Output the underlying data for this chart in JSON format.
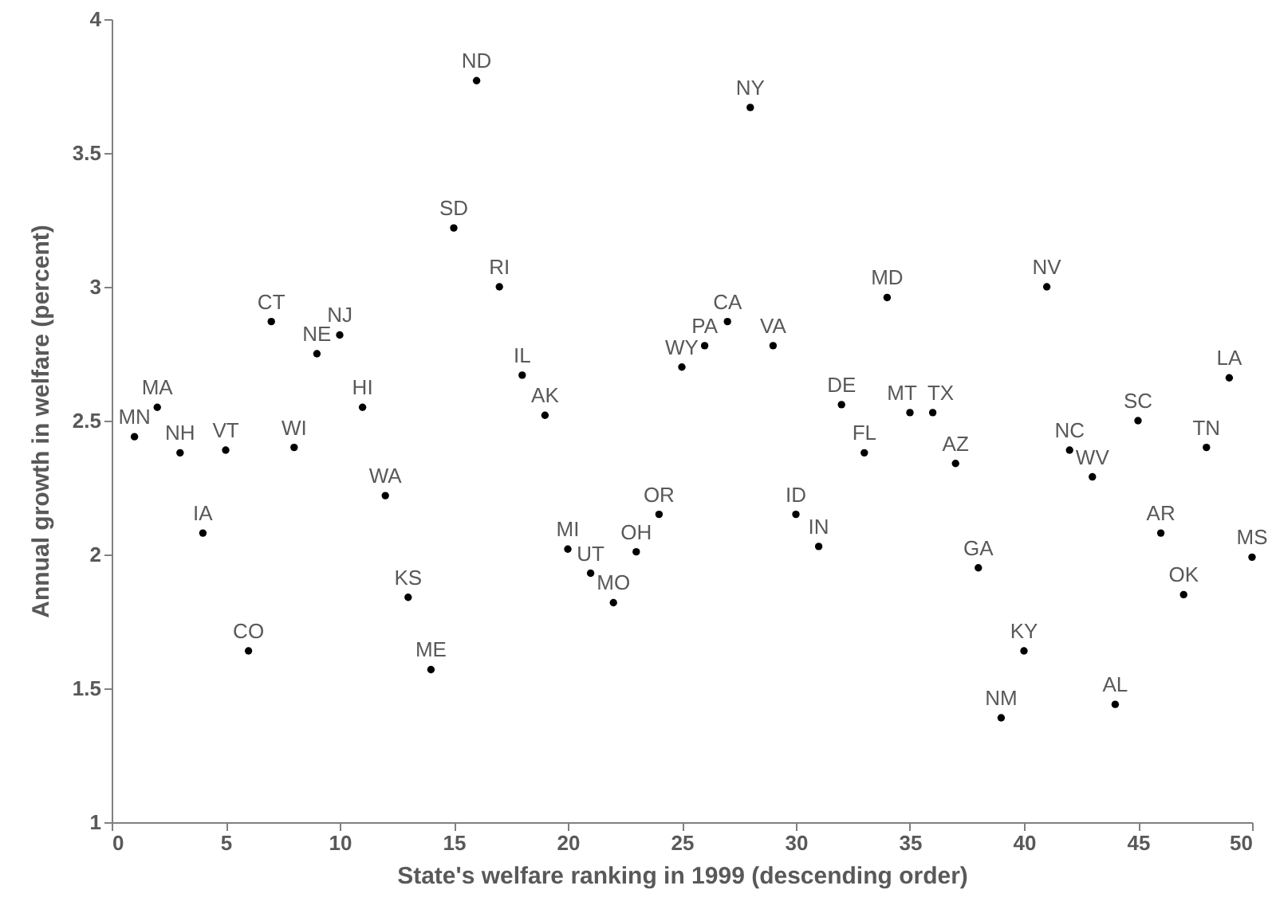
{
  "chart_data": {
    "type": "scatter",
    "xlabel": "State's welfare ranking in 1999 (descending order)",
    "ylabel": "Annual growth in welfare (percent)",
    "x": [
      1,
      2,
      3,
      4,
      5,
      6,
      7,
      8,
      9,
      10,
      11,
      12,
      13,
      14,
      15,
      16,
      17,
      18,
      19,
      20,
      21,
      22,
      23,
      24,
      25,
      26,
      27,
      28,
      29,
      30,
      31,
      32,
      33,
      34,
      35,
      36,
      37,
      38,
      39,
      40,
      41,
      42,
      43,
      44,
      45,
      46,
      47,
      48,
      49,
      50
    ],
    "series": [
      {
        "color": "#000000",
        "values": [
          2.44,
          2.55,
          2.38,
          2.08,
          2.39,
          1.64,
          2.87,
          2.4,
          2.75,
          2.82,
          2.55,
          2.22,
          1.84,
          1.57,
          3.22,
          3.77,
          3.0,
          2.67,
          2.52,
          2.02,
          1.93,
          1.82,
          2.01,
          2.15,
          2.7,
          2.78,
          2.87,
          3.67,
          2.78,
          2.15,
          2.03,
          2.56,
          2.38,
          2.96,
          2.53,
          2.53,
          2.34,
          1.95,
          1.39,
          1.64,
          3.0,
          2.39,
          2.29,
          1.44,
          2.5,
          2.08,
          1.85,
          2.4,
          2.66,
          1.99
        ]
      }
    ],
    "xlim": [
      0,
      50
    ],
    "xticks": [
      0,
      5,
      10,
      15,
      20,
      25,
      30,
      35,
      40,
      45,
      50
    ],
    "ylim": [
      1,
      4
    ],
    "yticks": [
      1,
      1.5,
      2,
      2.5,
      3,
      3.5,
      4
    ],
    "grid": false,
    "marker": "circle",
    "annotations": [
      {
        "text": "MN",
        "x": 1,
        "y": 2.44
      },
      {
        "text": "MA",
        "x": 2,
        "y": 2.55
      },
      {
        "text": "NH",
        "x": 3,
        "y": 2.38
      },
      {
        "text": "IA",
        "x": 4,
        "y": 2.08
      },
      {
        "text": "VT",
        "x": 5,
        "y": 2.39
      },
      {
        "text": "CO",
        "x": 6,
        "y": 1.64
      },
      {
        "text": "CT",
        "x": 7,
        "y": 2.87
      },
      {
        "text": "WI",
        "x": 8,
        "y": 2.4
      },
      {
        "text": "NE",
        "x": 9,
        "y": 2.75
      },
      {
        "text": "NJ",
        "x": 10,
        "y": 2.82
      },
      {
        "text": "HI",
        "x": 11,
        "y": 2.55
      },
      {
        "text": "WA",
        "x": 12,
        "y": 2.22
      },
      {
        "text": "KS",
        "x": 13,
        "y": 1.84
      },
      {
        "text": "ME",
        "x": 14,
        "y": 1.57
      },
      {
        "text": "SD",
        "x": 15,
        "y": 3.22
      },
      {
        "text": "ND",
        "x": 16,
        "y": 3.77
      },
      {
        "text": "RI",
        "x": 17,
        "y": 3.0
      },
      {
        "text": "IL",
        "x": 18,
        "y": 2.67
      },
      {
        "text": "AK",
        "x": 19,
        "y": 2.52
      },
      {
        "text": "MI",
        "x": 20,
        "y": 2.02
      },
      {
        "text": "UT",
        "x": 21,
        "y": 1.93
      },
      {
        "text": "MO",
        "x": 22,
        "y": 1.82
      },
      {
        "text": "OH",
        "x": 23,
        "y": 2.01
      },
      {
        "text": "OR",
        "x": 24,
        "y": 2.15
      },
      {
        "text": "WY",
        "x": 25,
        "y": 2.7
      },
      {
        "text": "PA",
        "x": 26,
        "y": 2.78
      },
      {
        "text": "CA",
        "x": 27,
        "y": 2.87
      },
      {
        "text": "NY",
        "x": 28,
        "y": 3.67
      },
      {
        "text": "VA",
        "x": 29,
        "y": 2.78
      },
      {
        "text": "ID",
        "x": 30,
        "y": 2.15
      },
      {
        "text": "IN",
        "x": 31,
        "y": 2.03
      },
      {
        "text": "DE",
        "x": 32,
        "y": 2.56
      },
      {
        "text": "FL",
        "x": 33,
        "y": 2.38
      },
      {
        "text": "MD",
        "x": 34,
        "y": 2.96
      },
      {
        "text": "MT",
        "x": 35,
        "y": 2.53
      },
      {
        "text": "TX",
        "x": 36,
        "y": 2.53
      },
      {
        "text": "AZ",
        "x": 37,
        "y": 2.34
      },
      {
        "text": "GA",
        "x": 38,
        "y": 1.95
      },
      {
        "text": "NM",
        "x": 39,
        "y": 1.39
      },
      {
        "text": "KY",
        "x": 40,
        "y": 1.64
      },
      {
        "text": "NV",
        "x": 41,
        "y": 3.0
      },
      {
        "text": "NC",
        "x": 42,
        "y": 2.39
      },
      {
        "text": "WV",
        "x": 43,
        "y": 2.29
      },
      {
        "text": "AL",
        "x": 44,
        "y": 1.44
      },
      {
        "text": "SC",
        "x": 45,
        "y": 2.5
      },
      {
        "text": "AR",
        "x": 46,
        "y": 2.08
      },
      {
        "text": "OK",
        "x": 47,
        "y": 1.85
      },
      {
        "text": "TN",
        "x": 48,
        "y": 2.4
      },
      {
        "text": "LA",
        "x": 49,
        "y": 2.66
      },
      {
        "text": "MS",
        "x": 50,
        "y": 1.99
      }
    ]
  }
}
